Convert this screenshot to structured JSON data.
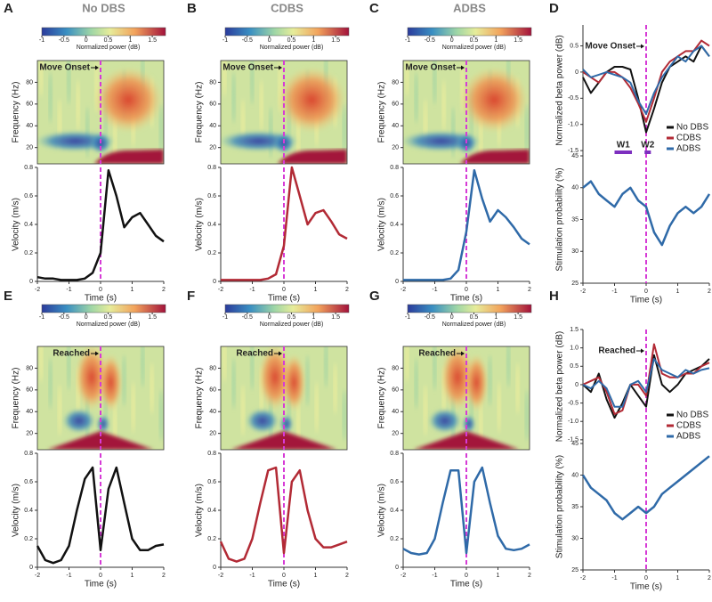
{
  "chart_data": [
    {
      "type": "spectrogram",
      "panel": "A",
      "heading": "No DBS",
      "colorbar_label": "Normalized power (dB)",
      "clim": [
        -1,
        1.8
      ],
      "cticks": [
        -1,
        -0.5,
        0,
        0.5,
        1,
        1.5
      ],
      "ylabel": "Frequency (Hz)",
      "ylim": [
        5,
        100
      ],
      "yticks": [
        20,
        40,
        60,
        80
      ],
      "xlim": [
        -2,
        2
      ],
      "event_time": 0,
      "annotation": "Move Onset"
    },
    {
      "type": "line",
      "ylabel": "Velocity (m/s)",
      "xlabel": "Time (s)",
      "xlim": [
        -2,
        2
      ],
      "xticks": [
        -2,
        -1,
        0,
        1,
        2
      ],
      "ylim": [
        0,
        0.8
      ],
      "yticks": [
        0,
        0.2,
        0.4,
        0.6,
        0.8
      ],
      "event_time": 0,
      "x": [
        -2,
        -1.75,
        -1.5,
        -1.25,
        -1,
        -0.75,
        -0.5,
        -0.25,
        0,
        0.25,
        0.5,
        0.75,
        1,
        1.25,
        1.5,
        1.75,
        2
      ],
      "series": [
        {
          "color": "#111111",
          "values": [
            0.03,
            0.02,
            0.02,
            0.01,
            0.01,
            0.01,
            0.02,
            0.06,
            0.2,
            0.78,
            0.6,
            0.38,
            0.45,
            0.48,
            0.4,
            0.32,
            0.28
          ]
        }
      ]
    },
    {
      "type": "spectrogram",
      "panel": "B",
      "heading": "CDBS",
      "colorbar_label": "Normalized power (dB)",
      "clim": [
        -1,
        1.8
      ],
      "cticks": [
        -1,
        -0.5,
        0,
        0.5,
        1,
        1.5
      ],
      "ylabel": "Frequency (Hz)",
      "ylim": [
        5,
        100
      ],
      "yticks": [
        20,
        40,
        60,
        80
      ],
      "xlim": [
        -2,
        2
      ],
      "event_time": 0,
      "annotation": "Move Onset"
    },
    {
      "type": "line",
      "ylabel": "Velocity (m/s)",
      "xlabel": "Time (s)",
      "xlim": [
        -2,
        2
      ],
      "xticks": [
        -2,
        -1,
        0,
        1,
        2
      ],
      "ylim": [
        0,
        0.8
      ],
      "yticks": [
        0,
        0.2,
        0.4,
        0.6,
        0.8
      ],
      "event_time": 0,
      "x": [
        -2,
        -1.75,
        -1.5,
        -1.25,
        -1,
        -0.75,
        -0.5,
        -0.25,
        0,
        0.25,
        0.5,
        0.75,
        1,
        1.25,
        1.5,
        1.75,
        2
      ],
      "series": [
        {
          "color": "#b22a35",
          "values": [
            0.01,
            0.01,
            0.01,
            0.01,
            0.01,
            0.01,
            0.02,
            0.05,
            0.25,
            0.8,
            0.6,
            0.4,
            0.48,
            0.5,
            0.42,
            0.33,
            0.3
          ]
        }
      ]
    },
    {
      "type": "spectrogram",
      "panel": "C",
      "heading": "ADBS",
      "colorbar_label": "Normalized power (dB)",
      "clim": [
        -1,
        1.8
      ],
      "cticks": [
        -1,
        -0.5,
        0,
        0.5,
        1,
        1.5
      ],
      "ylabel": "Frequency (Hz)",
      "ylim": [
        5,
        100
      ],
      "yticks": [
        20,
        40,
        60,
        80
      ],
      "xlim": [
        -2,
        2
      ],
      "event_time": 0,
      "annotation": "Move Onset"
    },
    {
      "type": "line",
      "ylabel": "Velocity (m/s)",
      "xlabel": "Time (s)",
      "xlim": [
        -2,
        2
      ],
      "xticks": [
        -2,
        -1,
        0,
        1,
        2
      ],
      "ylim": [
        0,
        0.8
      ],
      "yticks": [
        0,
        0.2,
        0.4,
        0.6,
        0.8
      ],
      "event_time": 0,
      "x": [
        -2,
        -1.75,
        -1.5,
        -1.25,
        -1,
        -0.75,
        -0.5,
        -0.25,
        0,
        0.25,
        0.5,
        0.75,
        1,
        1.25,
        1.5,
        1.75,
        2
      ],
      "series": [
        {
          "color": "#2f6aa8",
          "values": [
            0.01,
            0.01,
            0.01,
            0.01,
            0.01,
            0.01,
            0.02,
            0.08,
            0.35,
            0.78,
            0.58,
            0.42,
            0.5,
            0.45,
            0.38,
            0.3,
            0.26
          ]
        }
      ]
    },
    {
      "type": "beta-stim",
      "panel": "D",
      "annotation": "Move Onset",
      "xlabel": "Time (s)",
      "xlim": [
        -2,
        2
      ],
      "xticks": [
        -2,
        -1,
        0,
        1,
        2
      ],
      "event_time": 0,
      "windows": [
        {
          "label": "W1",
          "range": [
            -1,
            -0.45
          ]
        },
        {
          "label": "W2",
          "range": [
            -0.05,
            0.15
          ]
        }
      ],
      "x": [
        -2,
        -1.75,
        -1.5,
        -1.25,
        -1,
        -0.75,
        -0.5,
        -0.25,
        0,
        0.25,
        0.5,
        0.75,
        1,
        1.25,
        1.5,
        1.75,
        2
      ],
      "beta": {
        "ylabel": "Normalized beta power (dB)",
        "ylim": [
          -1.6,
          0.9
        ],
        "yticks": [
          -1.5,
          {
            "value": -1,
            "label": "-1.0"
          },
          -0.5,
          0,
          0.5
        ],
        "series": [
          {
            "name": "No DBS",
            "color": "#111111",
            "values": [
              -0.1,
              -0.4,
              -0.2,
              0,
              0.1,
              0.1,
              0.05,
              -0.5,
              -1.15,
              -0.7,
              -0.2,
              0.1,
              0.2,
              0.3,
              0.2,
              0.5,
              0.3
            ]
          },
          {
            "name": "CDBS",
            "color": "#b22a35",
            "values": [
              0,
              -0.1,
              -0.2,
              0,
              0,
              -0.1,
              -0.3,
              -0.6,
              -0.95,
              -0.5,
              0,
              0.2,
              0.3,
              0.4,
              0.4,
              0.6,
              0.5
            ]
          },
          {
            "name": "ADBS",
            "color": "#2f6aa8",
            "values": [
              0.05,
              -0.1,
              -0.05,
              0,
              -0.05,
              -0.1,
              -0.2,
              -0.55,
              -0.8,
              -0.4,
              -0.1,
              0.1,
              0.3,
              0.2,
              0.4,
              0.5,
              0.3
            ]
          }
        ]
      },
      "stim": {
        "ylabel": "Stimulation probability (%)",
        "ylim": [
          25,
          45
        ],
        "yticks": [
          25,
          30,
          35,
          40,
          45
        ],
        "series": [
          {
            "color": "#2f6aa8",
            "values": [
              40,
              41,
              39,
              38,
              37,
              39,
              40,
              38,
              37,
              33,
              31,
              34,
              36,
              37,
              36,
              37,
              39
            ]
          }
        ]
      }
    },
    {
      "type": "spectrogram",
      "panel": "E",
      "colorbar_label": "Normalized power (dB)",
      "clim": [
        -1,
        1.8
      ],
      "cticks": [
        -1,
        -0.5,
        0,
        0.5,
        1,
        1.5
      ],
      "ylabel": "Frequency (Hz)",
      "ylim": [
        5,
        100
      ],
      "yticks": [
        20,
        40,
        60,
        80
      ],
      "xlim": [
        -2,
        2
      ],
      "event_time": 0,
      "annotation": "Reached"
    },
    {
      "type": "line",
      "ylabel": "Velocity (m/s)",
      "xlabel": "Time (s)",
      "xlim": [
        -2,
        2
      ],
      "xticks": [
        -2,
        -1,
        0,
        1,
        2
      ],
      "ylim": [
        0,
        0.8
      ],
      "yticks": [
        0,
        0.2,
        0.4,
        0.6,
        0.8
      ],
      "event_time": 0,
      "x": [
        -2,
        -1.75,
        -1.5,
        -1.25,
        -1,
        -0.75,
        -0.5,
        -0.25,
        0,
        0.25,
        0.5,
        0.75,
        1,
        1.25,
        1.5,
        1.75,
        2
      ],
      "series": [
        {
          "color": "#111111",
          "values": [
            0.15,
            0.05,
            0.03,
            0.05,
            0.15,
            0.4,
            0.62,
            0.7,
            0.12,
            0.55,
            0.7,
            0.45,
            0.2,
            0.12,
            0.12,
            0.15,
            0.16
          ]
        }
      ]
    },
    {
      "type": "spectrogram",
      "panel": "F",
      "colorbar_label": "Normalized power (dB)",
      "clim": [
        -1,
        1.8
      ],
      "cticks": [
        -1,
        -0.5,
        0,
        0.5,
        1,
        1.5
      ],
      "ylabel": "Frequency (Hz)",
      "ylim": [
        5,
        100
      ],
      "yticks": [
        20,
        40,
        60,
        80
      ],
      "xlim": [
        -2,
        2
      ],
      "event_time": 0,
      "annotation": "Reached"
    },
    {
      "type": "line",
      "ylabel": "Velocity (m/s)",
      "xlabel": "Time (s)",
      "xlim": [
        -2,
        2
      ],
      "xticks": [
        -2,
        -1,
        0,
        1,
        2
      ],
      "ylim": [
        0,
        0.8
      ],
      "yticks": [
        0,
        0.2,
        0.4,
        0.6,
        0.8
      ],
      "event_time": 0,
      "x": [
        -2,
        -1.75,
        -1.5,
        -1.25,
        -1,
        -0.75,
        -0.5,
        -0.25,
        0,
        0.25,
        0.5,
        0.75,
        1,
        1.25,
        1.5,
        1.75,
        2
      ],
      "series": [
        {
          "color": "#b22a35",
          "values": [
            0.18,
            0.06,
            0.04,
            0.06,
            0.2,
            0.45,
            0.68,
            0.7,
            0.1,
            0.6,
            0.68,
            0.4,
            0.2,
            0.14,
            0.14,
            0.16,
            0.18
          ]
        }
      ]
    },
    {
      "type": "spectrogram",
      "panel": "G",
      "colorbar_label": "Normalized power (dB)",
      "clim": [
        -1,
        1.8
      ],
      "cticks": [
        -1,
        -0.5,
        0,
        0.5,
        1,
        1.5
      ],
      "ylabel": "Frequency (Hz)",
      "ylim": [
        5,
        100
      ],
      "yticks": [
        20,
        40,
        60,
        80
      ],
      "xlim": [
        -2,
        2
      ],
      "event_time": 0,
      "annotation": "Reached"
    },
    {
      "type": "line",
      "ylabel": "Velocity (m/s)",
      "xlabel": "Time (s)",
      "xlim": [
        -2,
        2
      ],
      "xticks": [
        -2,
        -1,
        0,
        1,
        2
      ],
      "ylim": [
        0,
        0.8
      ],
      "yticks": [
        0,
        0.2,
        0.4,
        0.6,
        0.8
      ],
      "event_time": 0,
      "x": [
        -2,
        -1.75,
        -1.5,
        -1.25,
        -1,
        -0.75,
        -0.5,
        -0.25,
        0,
        0.25,
        0.5,
        0.75,
        1,
        1.25,
        1.5,
        1.75,
        2
      ],
      "series": [
        {
          "color": "#2f6aa8",
          "values": [
            0.13,
            0.1,
            0.09,
            0.1,
            0.2,
            0.45,
            0.68,
            0.68,
            0.1,
            0.6,
            0.7,
            0.45,
            0.22,
            0.13,
            0.12,
            0.13,
            0.16
          ]
        }
      ]
    },
    {
      "type": "beta-stim",
      "panel": "H",
      "annotation": "Reached",
      "xlabel": "Time (s)",
      "xlim": [
        -2,
        2
      ],
      "xticks": [
        -2,
        -1,
        0,
        1,
        2
      ],
      "event_time": 0,
      "x": [
        -2,
        -1.75,
        -1.5,
        -1.25,
        -1,
        -0.75,
        -0.5,
        -0.25,
        0,
        0.25,
        0.5,
        0.75,
        1,
        1.25,
        1.5,
        1.75,
        2
      ],
      "beta": {
        "ylabel": "Normalized beta power (dB)",
        "ylim": [
          -1.6,
          1.5
        ],
        "yticks": [
          -1.5,
          {
            "value": -1,
            "label": "-1.0"
          },
          -0.5,
          0,
          0.5,
          {
            "value": 1,
            "label": "1.0"
          },
          1.5
        ],
        "series": [
          {
            "name": "No DBS",
            "color": "#111111",
            "values": [
              0,
              -0.2,
              0.3,
              -0.4,
              -0.9,
              -0.5,
              0,
              -0.3,
              -0.6,
              0.8,
              0,
              -0.2,
              0,
              0.3,
              0.4,
              0.5,
              0.7
            ]
          },
          {
            "name": "CDBS",
            "color": "#b22a35",
            "values": [
              0,
              0.1,
              0.2,
              -0.2,
              -0.8,
              -0.7,
              0,
              0,
              -0.3,
              1.1,
              0.3,
              0.2,
              0.2,
              0.3,
              0.3,
              0.5,
              0.6
            ]
          },
          {
            "name": "ADBS",
            "color": "#2f6aa8",
            "values": [
              0,
              -0.1,
              0.1,
              -0.1,
              -0.6,
              -0.6,
              0,
              0.1,
              -0.2,
              0.7,
              0.4,
              0.3,
              0.2,
              0.4,
              0.3,
              0.4,
              0.45
            ]
          }
        ]
      },
      "stim": {
        "ylabel": "Stimulation probability (%)",
        "ylim": [
          25,
          45
        ],
        "yticks": [
          25,
          30,
          35,
          40,
          45
        ],
        "series": [
          {
            "color": "#2f6aa8",
            "values": [
              40,
              38,
              37,
              36,
              34,
              33,
              34,
              35,
              34,
              35,
              37,
              38,
              39,
              40,
              41,
              42,
              43
            ]
          }
        ]
      }
    }
  ]
}
